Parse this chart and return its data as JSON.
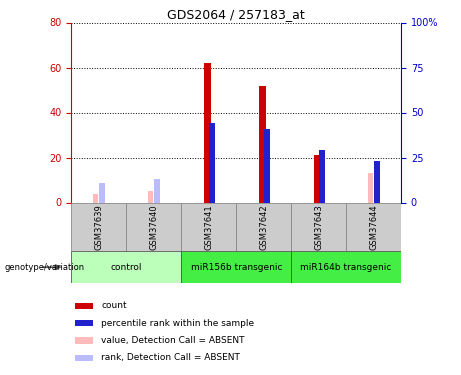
{
  "title": "GDS2064 / 257183_at",
  "samples": [
    "GSM37639",
    "GSM37640",
    "GSM37641",
    "GSM37642",
    "GSM37643",
    "GSM37644"
  ],
  "groups": [
    {
      "label": "control",
      "color": "#aaffaa",
      "start": 0,
      "end": 1
    },
    {
      "label": "miR156b transgenic",
      "color": "#55ee55",
      "start": 2,
      "end": 3
    },
    {
      "label": "miR164b transgenic",
      "color": "#55ee55",
      "start": 4,
      "end": 5
    }
  ],
  "count_values": [
    0,
    0,
    62,
    52,
    21,
    0
  ],
  "rank_values": [
    0,
    0,
    44,
    41,
    29,
    23
  ],
  "absent_value_values": [
    4,
    5,
    0,
    0,
    0,
    13
  ],
  "absent_rank_values": [
    11,
    13,
    0,
    0,
    0,
    22
  ],
  "ylim_left": [
    0,
    80
  ],
  "ylim_right": [
    0,
    100
  ],
  "yticks_left": [
    0,
    20,
    40,
    60,
    80
  ],
  "yticks_right": [
    0,
    25,
    50,
    75,
    100
  ],
  "left_tick_color": "#cc0000",
  "right_tick_color": "#0000cc",
  "count_color": "#cc0000",
  "rank_color": "#2222cc",
  "absent_value_color": "#ffbbbb",
  "absent_rank_color": "#bbbbff",
  "legend_items": [
    {
      "color": "#cc0000",
      "label": "count"
    },
    {
      "color": "#2222cc",
      "label": "percentile rank within the sample"
    },
    {
      "color": "#ffbbbb",
      "label": "value, Detection Call = ABSENT"
    },
    {
      "color": "#bbbbff",
      "label": "rank, Detection Call = ABSENT"
    }
  ],
  "sample_bg": "#cccccc",
  "group_bg_light": "#bbffbb",
  "group_bg_dark": "#44ee44"
}
